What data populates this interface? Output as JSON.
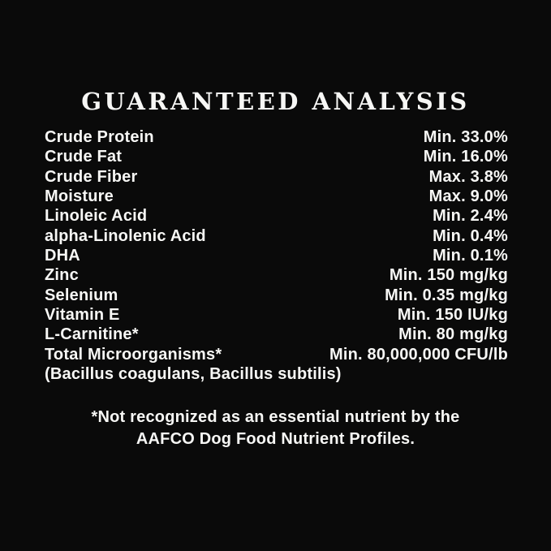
{
  "page": {
    "background_color": "#0a0a0a",
    "text_color": "#f7f7f5"
  },
  "title": "GUARANTEED ANALYSIS",
  "analysis": {
    "rows": [
      {
        "label": "Crude Protein",
        "value": "Min. 33.0%"
      },
      {
        "label": "Crude Fat",
        "value": "Min. 16.0%"
      },
      {
        "label": "Crude Fiber",
        "value": "Max. 3.8%"
      },
      {
        "label": "Moisture",
        "value": "Max. 9.0%"
      },
      {
        "label": "Linoleic Acid",
        "value": "Min. 2.4%"
      },
      {
        "label": "alpha-Linolenic Acid",
        "value": "Min. 0.4%"
      },
      {
        "label": "DHA",
        "value": "Min. 0.1%"
      },
      {
        "label": "Zinc",
        "value": "Min. 150 mg/kg"
      },
      {
        "label": "Selenium",
        "value": "Min. 0.35 mg/kg"
      },
      {
        "label": "Vitamin E",
        "value": "Min. 150 IU/kg"
      },
      {
        "label": "L-Carnitine*",
        "value": "Min. 80 mg/kg"
      },
      {
        "label": "Total Microorganisms*",
        "value": "Min. 80,000,000 CFU/lb"
      },
      {
        "label": "(Bacillus coagulans, Bacillus subtilis)",
        "value": ""
      }
    ]
  },
  "footnote": {
    "line1": "*Not recognized as an essential nutrient by the",
    "line2": "AAFCO Dog Food Nutrient Profiles."
  }
}
